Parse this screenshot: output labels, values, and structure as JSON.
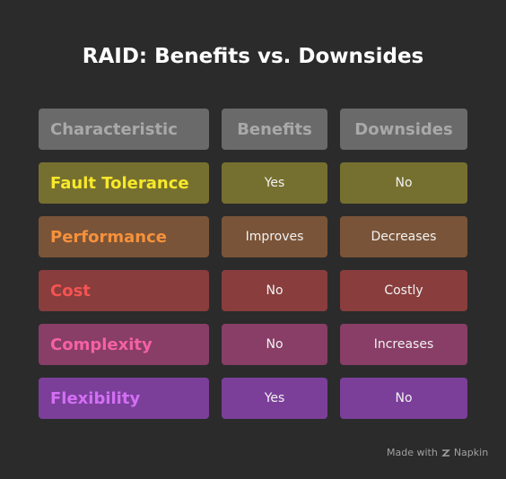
{
  "title": "RAID: Benefits vs. Downsides",
  "table": {
    "header": [
      "Characteristic",
      "Benefits",
      "Downsides"
    ],
    "rows": [
      [
        "Fault Tolerance",
        "Yes",
        "No"
      ],
      [
        "Performance",
        "Improves",
        "Decreases"
      ],
      [
        "Cost",
        "No",
        "Costly"
      ],
      [
        "Complexity",
        "No",
        "Increases"
      ],
      [
        "Flexibility",
        "Yes",
        "No"
      ]
    ]
  },
  "footer": {
    "made_with": "Made with",
    "brand": "Napkin"
  }
}
